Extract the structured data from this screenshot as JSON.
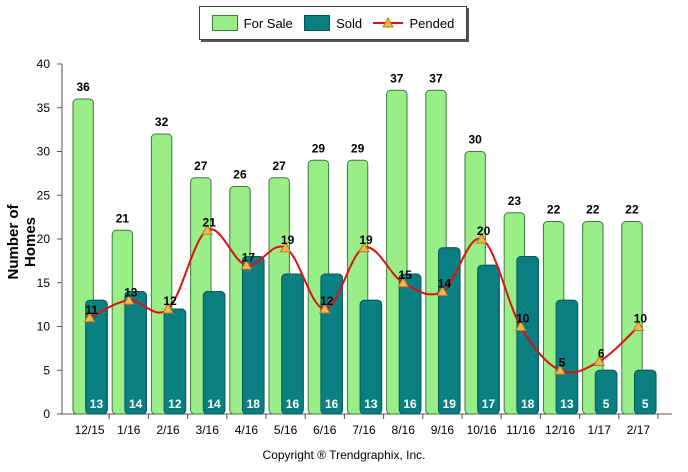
{
  "legend": {
    "for_sale": "For Sale",
    "sold": "Sold",
    "pended": "Pended"
  },
  "ylabel": "Number of Homes",
  "footer": "Copyright ® Trendgraphix, Inc.",
  "colors": {
    "for_sale": "#99ee88",
    "sold": "#0a7f82",
    "pended": "#dd1111",
    "marker": "#f5b84a"
  },
  "chart_data": {
    "type": "bar",
    "categories": [
      "12/15",
      "1/16",
      "2/16",
      "3/16",
      "4/16",
      "5/16",
      "6/16",
      "7/16",
      "8/16",
      "9/16",
      "10/16",
      "11/16",
      "12/16",
      "1/17",
      "2/17"
    ],
    "series": [
      {
        "name": "For Sale",
        "type": "bar",
        "values": [
          36,
          21,
          32,
          27,
          26,
          27,
          29,
          29,
          37,
          37,
          30,
          23,
          22,
          22,
          22
        ]
      },
      {
        "name": "Sold",
        "type": "bar",
        "values": [
          13,
          14,
          12,
          14,
          18,
          16,
          16,
          13,
          16,
          19,
          17,
          18,
          13,
          5,
          5
        ]
      },
      {
        "name": "Pended",
        "type": "line",
        "values": [
          11,
          13,
          12,
          21,
          17,
          19,
          12,
          19,
          15,
          14,
          20,
          10,
          5,
          6,
          10
        ]
      }
    ],
    "ylabel": "Number of Homes",
    "ylim": [
      0,
      40
    ],
    "yticks": [
      0,
      5,
      10,
      15,
      20,
      25,
      30,
      35,
      40
    ],
    "grid": false,
    "legend_position": "top"
  }
}
